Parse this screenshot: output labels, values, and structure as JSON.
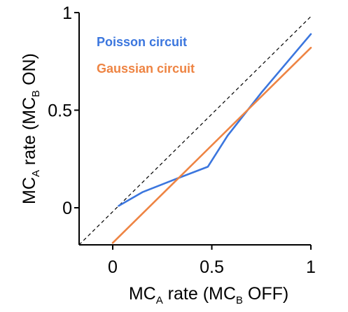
{
  "chart_data": {
    "type": "line",
    "title": "",
    "xlabel": {
      "main": "MC",
      "sub1": "A",
      "mid": " rate (MC",
      "sub2": "B",
      "end": " OFF)"
    },
    "ylabel": {
      "main": "MC",
      "sub1": "A",
      "mid": " rate (MC",
      "sub2": "B",
      "end": " ON)"
    },
    "xlim": [
      -0.17,
      1.0
    ],
    "ylim": [
      -0.19,
      1.0
    ],
    "x_ticks": [
      0,
      0.5,
      1
    ],
    "x_tick_labels": [
      "0",
      "0.5",
      "1"
    ],
    "y_ticks": [
      0,
      0.5,
      1
    ],
    "y_tick_labels": [
      "0",
      "0.5",
      "1"
    ],
    "grid": false,
    "legend_position": "top-left",
    "reference_line": {
      "style": "dashed",
      "color": "#000000",
      "x": [
        -0.17,
        1.0
      ],
      "y": [
        -0.19,
        0.98
      ]
    },
    "series": [
      {
        "name": "Poisson circuit",
        "color": "#3b76de",
        "x": [
          0.03,
          0.15,
          0.3,
          0.48,
          0.58,
          0.75,
          1.0
        ],
        "y": [
          0.01,
          0.08,
          0.14,
          0.21,
          0.37,
          0.59,
          0.89
        ]
      },
      {
        "name": "Gaussian circuit",
        "color": "#ee8443",
        "x": [
          0.0,
          1.0
        ],
        "y": [
          -0.18,
          0.82
        ]
      }
    ]
  }
}
